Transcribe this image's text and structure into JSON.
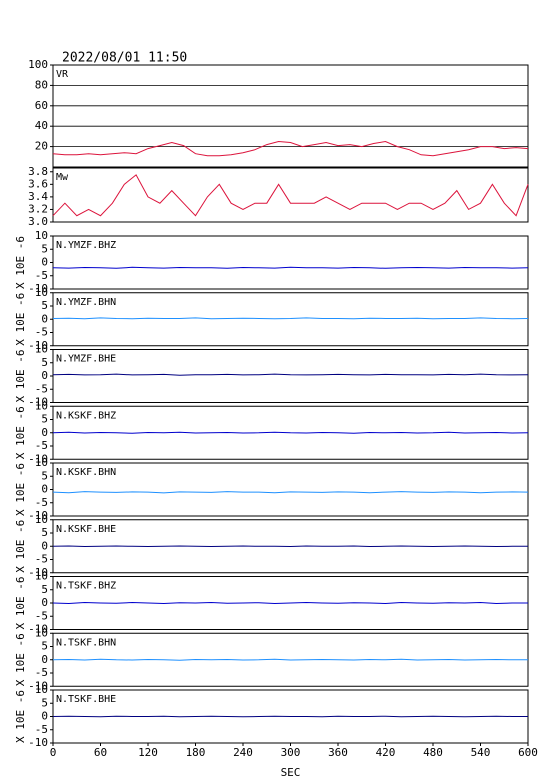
{
  "title": "2022/08/01 11:50",
  "chart_data": [
    {
      "type": "line",
      "label": "VR",
      "color": "#dc143c",
      "grid": true,
      "xlim": [
        0,
        600
      ],
      "ylim": [
        0,
        100
      ],
      "yticks": [
        20,
        40,
        60,
        80,
        100
      ],
      "x": [
        0,
        15,
        30,
        45,
        60,
        75,
        90,
        105,
        120,
        135,
        150,
        165,
        180,
        195,
        210,
        225,
        240,
        255,
        270,
        285,
        300,
        315,
        330,
        345,
        360,
        375,
        390,
        405,
        420,
        435,
        450,
        465,
        480,
        495,
        510,
        525,
        540,
        555,
        570,
        585,
        600
      ],
      "values": [
        13,
        12,
        12,
        13,
        12,
        13,
        14,
        13,
        18,
        21,
        24,
        21,
        13,
        11,
        11,
        12,
        14,
        17,
        22,
        25,
        24,
        20,
        22,
        24,
        21,
        22,
        20,
        23,
        25,
        20,
        17,
        12,
        11,
        13,
        15,
        17,
        20,
        20,
        18,
        19,
        18
      ]
    },
    {
      "type": "line",
      "label": "Mw",
      "color": "#dc143c",
      "xlim": [
        0,
        600
      ],
      "ylim": [
        3.0,
        3.86
      ],
      "yticks": [
        {
          "value": 3,
          "label": "3.0"
        },
        3.2,
        3.4,
        3.6,
        3.8
      ],
      "x": [
        0,
        15,
        30,
        45,
        60,
        75,
        90,
        105,
        120,
        135,
        150,
        165,
        180,
        195,
        210,
        225,
        240,
        255,
        270,
        285,
        300,
        315,
        330,
        345,
        360,
        375,
        390,
        405,
        420,
        435,
        450,
        465,
        480,
        495,
        510,
        525,
        540,
        555,
        570,
        585,
        600
      ],
      "values": [
        3.1,
        3.3,
        3.1,
        3.2,
        3.1,
        3.3,
        3.6,
        3.75,
        3.4,
        3.3,
        3.5,
        3.3,
        3.1,
        3.4,
        3.6,
        3.3,
        3.2,
        3.3,
        3.3,
        3.6,
        3.3,
        3.3,
        3.3,
        3.4,
        3.3,
        3.2,
        3.3,
        3.3,
        3.3,
        3.2,
        3.3,
        3.3,
        3.2,
        3.3,
        3.5,
        3.2,
        3.3,
        3.6,
        3.3,
        3.1,
        3.6
      ]
    },
    {
      "type": "line",
      "label": "N.YMZF.BHZ",
      "ylabel": "X 10E -6",
      "color": "#0000cd",
      "xlim": [
        0,
        600
      ],
      "ylim": [
        -10,
        10
      ],
      "yticks": [
        -10,
        -5,
        0,
        5,
        10
      ],
      "x": [
        0,
        20,
        40,
        60,
        80,
        100,
        120,
        140,
        160,
        180,
        200,
        220,
        240,
        260,
        280,
        300,
        320,
        340,
        360,
        380,
        400,
        420,
        440,
        460,
        480,
        500,
        520,
        540,
        560,
        580,
        600
      ],
      "values": [
        -2,
        -2.1,
        -1.9,
        -2,
        -2.2,
        -1.8,
        -2,
        -2.1,
        -1.9,
        -2,
        -2,
        -2.2,
        -1.9,
        -2,
        -2.1,
        -1.8,
        -2,
        -2,
        -2.1,
        -1.9,
        -2,
        -2.2,
        -2,
        -1.9,
        -2,
        -2.1,
        -1.9,
        -2,
        -2,
        -2.1,
        -2
      ]
    },
    {
      "type": "line",
      "label": "N.YMZF.BHN",
      "ylabel": "X 10E -6",
      "color": "#1e90ff",
      "xlim": [
        0,
        600
      ],
      "ylim": [
        -10,
        10
      ],
      "yticks": [
        -10,
        -5,
        0,
        5,
        10
      ],
      "x": [
        0,
        20,
        40,
        60,
        80,
        100,
        120,
        140,
        160,
        180,
        200,
        220,
        240,
        260,
        280,
        300,
        320,
        340,
        360,
        380,
        400,
        420,
        440,
        460,
        480,
        500,
        520,
        540,
        560,
        580,
        600
      ],
      "values": [
        0.3,
        0.4,
        0.2,
        0.5,
        0.3,
        0.2,
        0.4,
        0.3,
        0.3,
        0.5,
        0.2,
        0.3,
        0.4,
        0.3,
        0.2,
        0.3,
        0.5,
        0.3,
        0.3,
        0.2,
        0.4,
        0.3,
        0.3,
        0.4,
        0.2,
        0.3,
        0.3,
        0.5,
        0.3,
        0.2,
        0.3
      ]
    },
    {
      "type": "line",
      "label": "N.YMZF.BHE",
      "ylabel": "X 10E -6",
      "color": "#000080",
      "xlim": [
        0,
        600
      ],
      "ylim": [
        -10,
        10
      ],
      "yticks": [
        -10,
        -5,
        0,
        5,
        10
      ],
      "x": [
        0,
        20,
        40,
        60,
        80,
        100,
        120,
        140,
        160,
        180,
        200,
        220,
        240,
        260,
        280,
        300,
        320,
        340,
        360,
        380,
        400,
        420,
        440,
        460,
        480,
        500,
        520,
        540,
        560,
        580,
        600
      ],
      "values": [
        0.5,
        0.6,
        0.4,
        0.5,
        0.7,
        0.4,
        0.5,
        0.6,
        0.3,
        0.5,
        0.5,
        0.6,
        0.4,
        0.5,
        0.7,
        0.5,
        0.4,
        0.5,
        0.6,
        0.5,
        0.4,
        0.6,
        0.5,
        0.5,
        0.4,
        0.6,
        0.5,
        0.7,
        0.5,
        0.4,
        0.5
      ]
    },
    {
      "type": "line",
      "label": "N.KSKF.BHZ",
      "ylabel": "X 10E -6",
      "color": "#0000cd",
      "xlim": [
        0,
        600
      ],
      "ylim": [
        -10,
        10
      ],
      "yticks": [
        -10,
        -5,
        0,
        5,
        10
      ],
      "x": [
        0,
        20,
        40,
        60,
        80,
        100,
        120,
        140,
        160,
        180,
        200,
        220,
        240,
        260,
        280,
        300,
        320,
        340,
        360,
        380,
        400,
        420,
        440,
        460,
        480,
        500,
        520,
        540,
        560,
        580,
        600
      ],
      "values": [
        0,
        0.2,
        -0.1,
        0.1,
        0,
        -0.2,
        0.1,
        0,
        0.2,
        -0.1,
        0,
        0.1,
        -0.1,
        0,
        0.2,
        0,
        -0.1,
        0.1,
        0,
        -0.2,
        0.1,
        0,
        0.1,
        -0.1,
        0,
        0.2,
        -0.1,
        0,
        0.1,
        -0.1,
        0
      ]
    },
    {
      "type": "line",
      "label": "N.KSKF.BHN",
      "ylabel": "X 10E -6",
      "color": "#1e90ff",
      "xlim": [
        0,
        600
      ],
      "ylim": [
        -10,
        10
      ],
      "yticks": [
        -10,
        -5,
        0,
        5,
        10
      ],
      "x": [
        0,
        20,
        40,
        60,
        80,
        100,
        120,
        140,
        160,
        180,
        200,
        220,
        240,
        260,
        280,
        300,
        320,
        340,
        360,
        380,
        400,
        420,
        440,
        460,
        480,
        500,
        520,
        540,
        560,
        580,
        600
      ],
      "values": [
        -1,
        -1.2,
        -0.8,
        -1,
        -1.1,
        -0.9,
        -1,
        -1.3,
        -0.9,
        -1,
        -1.1,
        -0.8,
        -1,
        -1,
        -1.2,
        -0.9,
        -1,
        -1.1,
        -0.9,
        -1,
        -1.2,
        -1,
        -0.8,
        -1,
        -1.1,
        -0.9,
        -1,
        -1.2,
        -1,
        -0.9,
        -1
      ]
    },
    {
      "type": "line",
      "label": "N.KSKF.BHE",
      "ylabel": "X 10E -6",
      "color": "#000080",
      "xlim": [
        0,
        600
      ],
      "ylim": [
        -10,
        10
      ],
      "yticks": [
        -10,
        -5,
        0,
        5,
        10
      ],
      "x": [
        0,
        20,
        40,
        60,
        80,
        100,
        120,
        140,
        160,
        180,
        200,
        220,
        240,
        260,
        280,
        300,
        320,
        340,
        360,
        380,
        400,
        420,
        440,
        460,
        480,
        500,
        520,
        540,
        560,
        580,
        600
      ],
      "values": [
        0,
        0.1,
        -0.1,
        0,
        0.1,
        0,
        -0.1,
        0,
        0.1,
        0,
        -0.1,
        0,
        0.1,
        0,
        0,
        -0.1,
        0.1,
        0,
        0,
        0.1,
        -0.1,
        0,
        0.1,
        0,
        -0.1,
        0,
        0.1,
        0,
        -0.1,
        0,
        0
      ]
    },
    {
      "type": "line",
      "label": "N.TSKF.BHZ",
      "ylabel": "X 10E -6",
      "color": "#0000cd",
      "xlim": [
        0,
        600
      ],
      "ylim": [
        -10,
        10
      ],
      "yticks": [
        -10,
        -5,
        0,
        5,
        10
      ],
      "x": [
        0,
        20,
        40,
        60,
        80,
        100,
        120,
        140,
        160,
        180,
        200,
        220,
        240,
        260,
        280,
        300,
        320,
        340,
        360,
        380,
        400,
        420,
        440,
        460,
        480,
        500,
        520,
        540,
        560,
        580,
        600
      ],
      "values": [
        0,
        -0.2,
        0.2,
        0,
        -0.1,
        0.2,
        0,
        -0.2,
        0.1,
        0,
        0.2,
        -0.1,
        0,
        0.1,
        -0.2,
        0,
        0.2,
        0,
        -0.1,
        0.1,
        0,
        -0.2,
        0.2,
        0,
        -0.1,
        0.1,
        0,
        0.2,
        -0.2,
        0,
        0
      ]
    },
    {
      "type": "line",
      "label": "N.TSKF.BHN",
      "ylabel": "X 10E -6",
      "color": "#1e90ff",
      "xlim": [
        0,
        600
      ],
      "ylim": [
        -10,
        10
      ],
      "yticks": [
        -10,
        -5,
        0,
        5,
        10
      ],
      "x": [
        0,
        20,
        40,
        60,
        80,
        100,
        120,
        140,
        160,
        180,
        200,
        220,
        240,
        260,
        280,
        300,
        320,
        340,
        360,
        380,
        400,
        420,
        440,
        460,
        480,
        500,
        520,
        540,
        560,
        580,
        600
      ],
      "values": [
        0,
        0.1,
        -0.1,
        0.2,
        0,
        -0.1,
        0.1,
        0,
        -0.2,
        0.1,
        0,
        0.1,
        -0.1,
        0,
        0.2,
        -0.1,
        0,
        0.1,
        0,
        -0.1,
        0.1,
        0,
        0.2,
        -0.1,
        0,
        0.1,
        -0.1,
        0,
        0.1,
        0,
        0
      ]
    },
    {
      "type": "line",
      "label": "N.TSKF.BHE",
      "ylabel": "X 10E -6",
      "color": "#000080",
      "xlim": [
        0,
        600
      ],
      "ylim": [
        -10,
        10
      ],
      "yticks": [
        -10,
        -5,
        0,
        5,
        10
      ],
      "xticks": [
        0,
        60,
        120,
        180,
        240,
        300,
        360,
        420,
        480,
        540,
        600
      ],
      "xlabel": "SEC",
      "x": [
        0,
        20,
        40,
        60,
        80,
        100,
        120,
        140,
        160,
        180,
        200,
        220,
        240,
        260,
        280,
        300,
        320,
        340,
        360,
        380,
        400,
        420,
        440,
        460,
        480,
        500,
        520,
        540,
        560,
        580,
        600
      ],
      "values": [
        0,
        0.1,
        0,
        -0.1,
        0.1,
        0,
        0,
        0.1,
        -0.1,
        0,
        0.1,
        0,
        -0.1,
        0,
        0.1,
        0,
        0,
        -0.1,
        0.1,
        0,
        0,
        0.1,
        -0.1,
        0,
        0.1,
        0,
        -0.1,
        0,
        0.1,
        0,
        0
      ]
    }
  ]
}
